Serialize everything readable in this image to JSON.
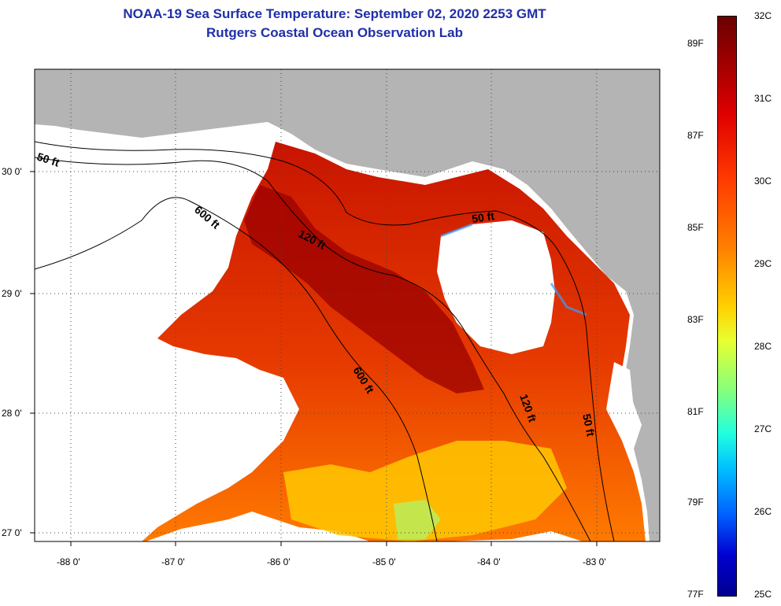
{
  "title_line1": "NOAA-19 Sea Surface Temperature:  September 02, 2020 2253 GMT",
  "title_line2": "Rutgers Coastal Ocean Observation Lab",
  "axes": {
    "lat_labels": [
      "30 0'",
      "29 0'",
      "28 0'",
      "27 0'"
    ],
    "lon_labels": [
      "-88 0'",
      "-87 0'",
      "-86 0'",
      "-85 0'",
      "-84 0'",
      "-83 0'"
    ],
    "lat_range": [
      26.98,
      30.85
    ],
    "lon_range": [
      -88.35,
      -82.45
    ]
  },
  "contours": {
    "label_50": "50 ft",
    "label_120": "120 ft",
    "label_600": "600 ft"
  },
  "colorbar": {
    "celsius": [
      "32C",
      "31C",
      "30C",
      "29C",
      "28C",
      "27C",
      "26C",
      "25C"
    ],
    "fahrenheit": [
      "89F",
      "87F",
      "85F",
      "83F",
      "81F",
      "79F",
      "77F"
    ],
    "range_c": [
      25,
      32
    ],
    "colors": [
      "#6a0000",
      "#e00000",
      "#ff8000",
      "#ffd000",
      "#80ff80",
      "#20ffe0",
      "#0060ff",
      "#000090"
    ]
  }
}
